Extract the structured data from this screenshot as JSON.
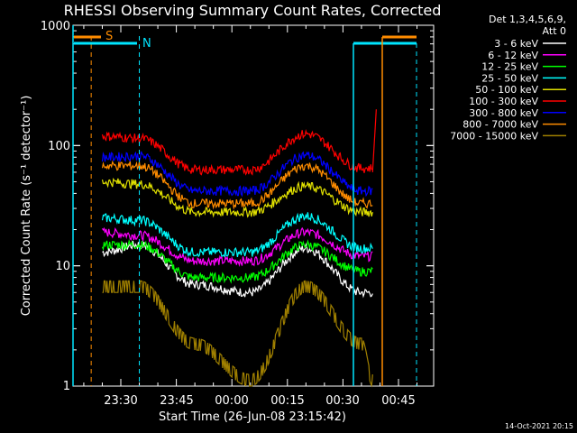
{
  "colors": {
    "background": "#000000",
    "axes": "#ffffff",
    "marker_cyan": "#00e5ff",
    "marker_orange": "#ff8c00"
  },
  "chart_data": {
    "type": "line",
    "title": "RHESSI Observing Summary Count Rates, Corrected",
    "xlabel": "Start Time (26-Jun-08 23:15:42)",
    "ylabel": "Corrected Count Rate (s⁻¹ detector⁻¹)",
    "y_scale": "log",
    "ylim": [
      1,
      1000
    ],
    "xlim": [
      "23:15:42",
      "00:53:00"
    ],
    "x_ticks": [
      "23:30",
      "23:45",
      "00:00",
      "00:15",
      "00:30",
      "00:45"
    ],
    "y_ticks": [
      "1",
      "10",
      "100",
      "1000"
    ],
    "legend_header": [
      "Det 1,3,4,5,6,9,",
      "Att 0"
    ],
    "legend_position": "right",
    "markers": [
      {
        "label": "S",
        "color": "#ff8c00",
        "style": "dashed",
        "at": "23:22"
      },
      {
        "label": "N",
        "color": "#00e5ff",
        "style": "dashed",
        "at": "23:35"
      }
    ],
    "series": [
      {
        "name": "3 - 6 keV",
        "color": "#ffffff",
        "values_at": {
          "23:25": 13,
          "23:35": 15,
          "23:50": 7,
          "00:05": 6,
          "00:20": 14,
          "00:35": 6,
          "00:38": 6
        }
      },
      {
        "name": "6 - 12 keV",
        "color": "#ff00ff",
        "values_at": {
          "23:25": 19,
          "23:35": 18,
          "23:50": 11,
          "00:05": 11,
          "00:20": 19,
          "00:35": 12,
          "00:38": 12
        }
      },
      {
        "name": "12 - 25 keV",
        "color": "#00ff00",
        "values_at": {
          "23:25": 15,
          "23:35": 15,
          "23:50": 8,
          "00:05": 8,
          "00:20": 15,
          "00:35": 9,
          "00:38": 9
        }
      },
      {
        "name": "25 - 50 keV",
        "color": "#00ffff",
        "values_at": {
          "23:25": 25,
          "23:35": 24,
          "23:50": 13,
          "00:05": 13,
          "00:20": 26,
          "00:35": 14,
          "00:38": 14
        }
      },
      {
        "name": "50 - 100 keV",
        "color": "#e0e000",
        "values_at": {
          "23:25": 50,
          "23:35": 48,
          "23:50": 28,
          "00:05": 28,
          "00:20": 46,
          "00:35": 28,
          "00:38": 28
        }
      },
      {
        "name": "100 - 300 keV",
        "color": "#ff0000",
        "values_at": {
          "23:25": 120,
          "23:35": 115,
          "23:50": 63,
          "00:05": 63,
          "00:20": 125,
          "00:35": 65,
          "00:38": 65
        }
      },
      {
        "name": "300 - 800 keV",
        "color": "#0000ff",
        "values_at": {
          "23:25": 80,
          "23:35": 82,
          "23:50": 42,
          "00:05": 42,
          "00:20": 83,
          "00:35": 42,
          "00:38": 42
        }
      },
      {
        "name": "800 - 7000 keV",
        "color": "#ff8c00",
        "values_at": {
          "23:25": 68,
          "23:35": 68,
          "23:50": 33,
          "00:05": 33,
          "00:20": 68,
          "00:35": 33,
          "00:38": 33
        }
      },
      {
        "name": "7000 - 15000 keV",
        "color": "#a08000",
        "values_at": {
          "23:25": 6,
          "23:35": 6,
          "23:50": 2,
          "00:05": 1,
          "00:20": 6,
          "00:35": 2,
          "00:38": 1
        }
      }
    ]
  },
  "footer": {
    "timestamp": "14-Oct-2021 20:15"
  }
}
